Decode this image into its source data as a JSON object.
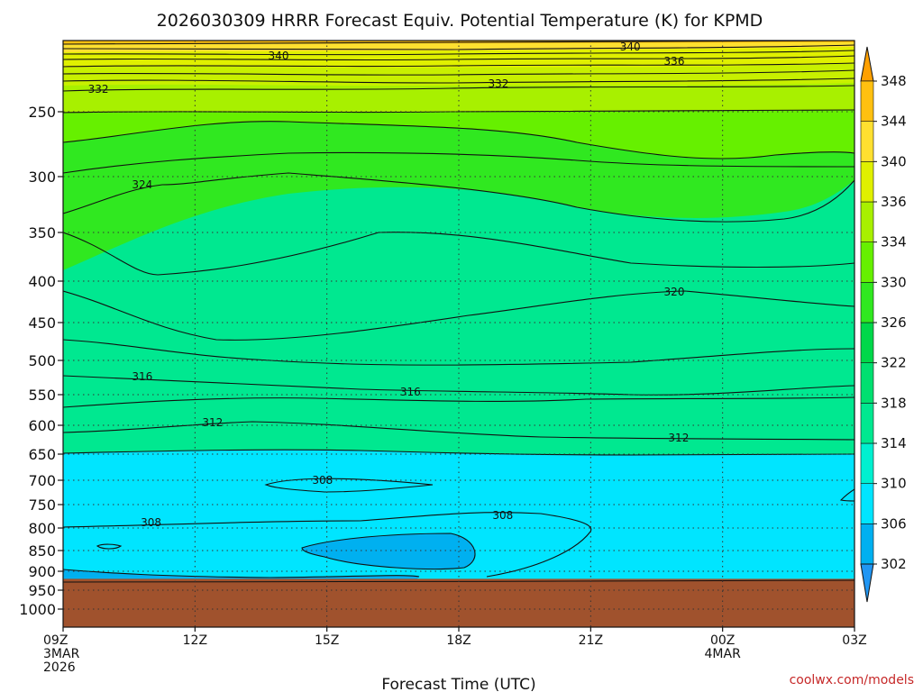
{
  "chart_data": {
    "type": "heatmap",
    "title": "2026030309 HRRR Forecast Equiv. Potential Temperature (K) for KPMD",
    "xlabel": "Forecast Time (UTC)",
    "ylabel": "",
    "x_ticks": [
      {
        "hour": 0,
        "lines": [
          "09Z",
          "3MAR",
          "2026"
        ]
      },
      {
        "hour": 3,
        "lines": [
          "12Z"
        ]
      },
      {
        "hour": 6,
        "lines": [
          "15Z"
        ]
      },
      {
        "hour": 9,
        "lines": [
          "18Z"
        ]
      },
      {
        "hour": 12,
        "lines": [
          "21Z"
        ]
      },
      {
        "hour": 15,
        "lines": [
          "00Z",
          "4MAR"
        ]
      },
      {
        "hour": 18,
        "lines": [
          "03Z"
        ]
      }
    ],
    "xlim": [
      0,
      18
    ],
    "y_ticks": [
      250,
      300,
      350,
      400,
      450,
      500,
      550,
      600,
      650,
      700,
      750,
      800,
      850,
      900,
      950,
      1000
    ],
    "ylim": [
      1050,
      200
    ],
    "colorbar": {
      "levels": [
        302,
        306,
        310,
        314,
        318,
        322,
        326,
        330,
        334,
        336,
        340,
        344,
        348
      ],
      "colors": [
        "#2196f3",
        "#00b0f0",
        "#00e5ff",
        "#00f0d0",
        "#00e890",
        "#00e070",
        "#00d84a",
        "#30e820",
        "#66f000",
        "#a8f000",
        "#e0f000",
        "#ffe030",
        "#ffc010",
        "#ffa000"
      ]
    },
    "terrain": {
      "top_pressure_hPa": 920,
      "color": "#a0522d"
    },
    "contours": [
      {
        "value": 308,
        "label": "308",
        "label_hour": 2.0
      },
      {
        "value": 308,
        "label": "308",
        "label_hour": 5.9
      },
      {
        "value": 308,
        "label": "308",
        "label_hour": 10.0
      },
      {
        "value": 312,
        "label": "312",
        "label_hour": 3.4
      },
      {
        "value": 312,
        "label": "312",
        "label_hour": 14.0
      },
      {
        "value": 316,
        "label": "316",
        "label_hour": 1.8
      },
      {
        "value": 316,
        "label": "316",
        "label_hour": 7.9
      },
      {
        "value": 320,
        "label": "320",
        "label_hour": 13.9
      },
      {
        "value": 324,
        "label": "324",
        "label_hour": 1.8
      },
      {
        "value": 332,
        "label": "332",
        "label_hour": 0.8
      },
      {
        "value": 332,
        "label": "332",
        "label_hour": 9.9
      },
      {
        "value": 336,
        "label": "336",
        "label_hour": 13.9
      },
      {
        "value": 340,
        "label": "340",
        "label_hour": 4.9
      },
      {
        "value": 340,
        "label": "340",
        "label_hour": 12.9
      }
    ],
    "credit": "coolwx.com/models"
  }
}
